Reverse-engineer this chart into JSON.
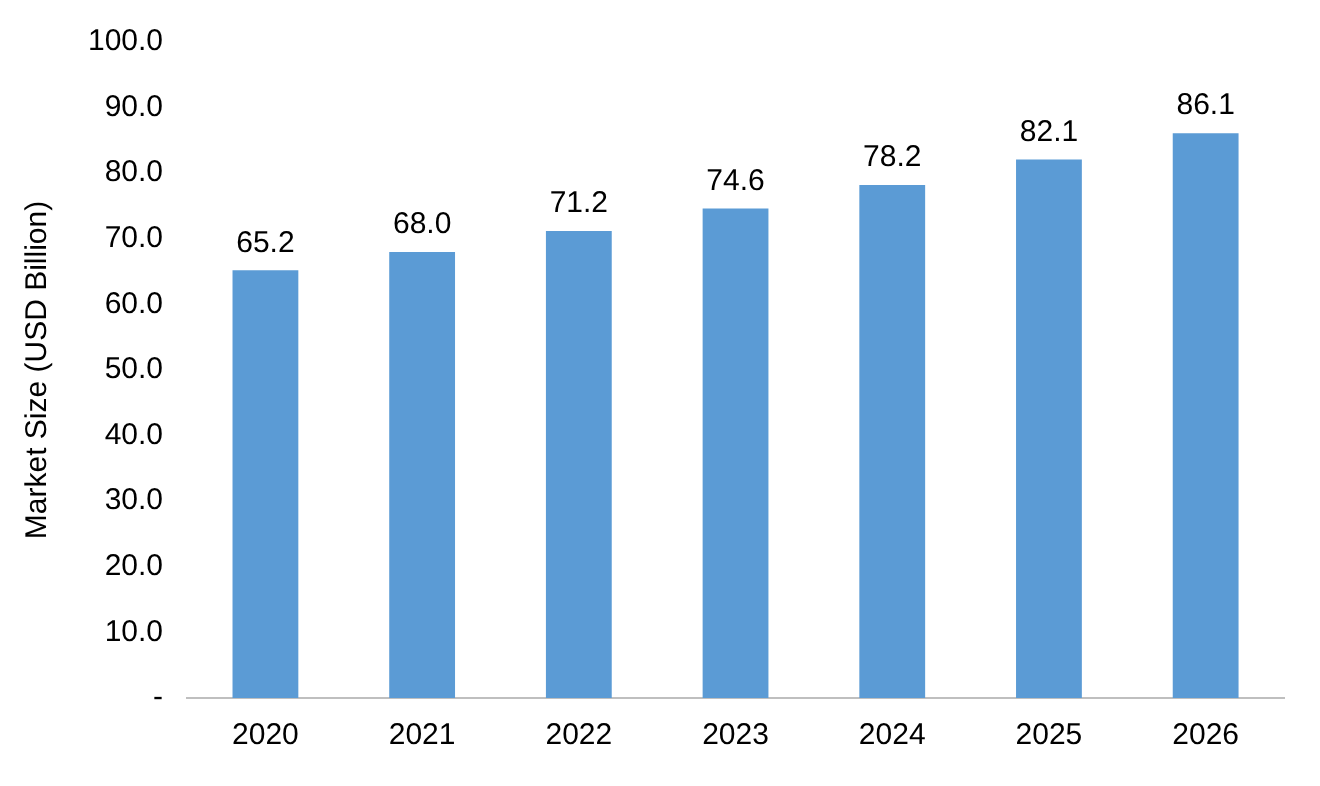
{
  "chart_data": {
    "type": "bar",
    "ylabel": "Market Size (USD Billion)",
    "categories": [
      "2020",
      "2021",
      "2022",
      "2023",
      "2024",
      "2025",
      "2026"
    ],
    "values": [
      65.2,
      68.0,
      71.2,
      74.6,
      78.2,
      82.1,
      86.1
    ],
    "value_labels": [
      "65.2",
      "68.0",
      "71.2",
      "74.6",
      "78.2",
      "82.1",
      "86.1"
    ],
    "color": "#5b9bd5",
    "ylim": [
      0,
      100
    ],
    "yticks": [
      {
        "value": 0,
        "label": "-"
      },
      {
        "value": 10,
        "label": "10.0"
      },
      {
        "value": 20,
        "label": "20.0"
      },
      {
        "value": 30,
        "label": "30.0"
      },
      {
        "value": 40,
        "label": "40.0"
      },
      {
        "value": 50,
        "label": "50.0"
      },
      {
        "value": 60,
        "label": "60.0"
      },
      {
        "value": 70,
        "label": "70.0"
      },
      {
        "value": 80,
        "label": "80.0"
      },
      {
        "value": 90,
        "label": "90.0"
      },
      {
        "value": 100,
        "label": "100.0"
      }
    ],
    "grid": false,
    "legend": false
  }
}
